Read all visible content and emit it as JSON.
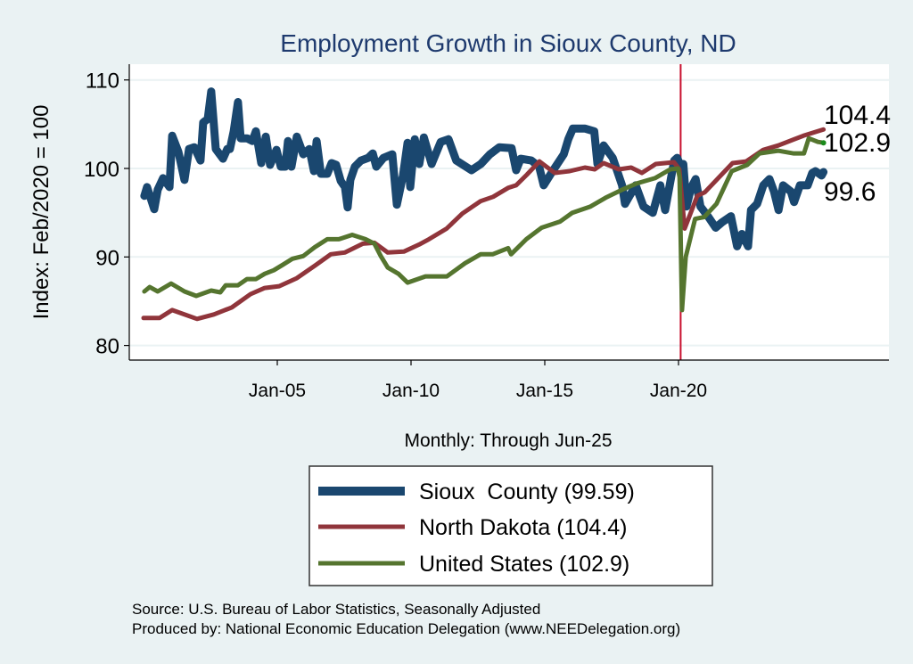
{
  "chart_data": {
    "type": "line",
    "title": "Employment Growth in Sioux  County, ND",
    "ylabel": "Index: Feb/2020 = 100",
    "xlabel": "Monthly: Through Jun-25",
    "ylim": [
      79,
      112
    ],
    "xlim": [
      1999.5,
      2028
    ],
    "yticks": [
      80,
      90,
      100,
      110
    ],
    "xticks": [
      {
        "value": 2005,
        "label": "Jan-05"
      },
      {
        "value": 2010,
        "label": "Jan-10"
      },
      {
        "value": 2015,
        "label": "Jan-15"
      },
      {
        "value": 2020,
        "label": "Jan-20"
      }
    ],
    "reference_line": {
      "x": 2020.08,
      "color": "#c8102e"
    },
    "grid": true,
    "legend": {
      "placement": "bottom"
    },
    "end_labels": [
      "104.4",
      "102.9",
      "99.6"
    ],
    "series": [
      {
        "name": "Sioux  County (99.59)",
        "color": "#1a476f",
        "points": [
          [
            2000.03,
            96.9
          ],
          [
            2000.13,
            97.9
          ],
          [
            2000.4,
            95.4
          ],
          [
            2000.53,
            97.6
          ],
          [
            2000.73,
            98.9
          ],
          [
            2000.97,
            97.9
          ],
          [
            2001.07,
            103.7
          ],
          [
            2001.3,
            101.9
          ],
          [
            2001.53,
            98.7
          ],
          [
            2001.7,
            102.2
          ],
          [
            2001.9,
            102.4
          ],
          [
            2002.13,
            100.9
          ],
          [
            2002.23,
            105.2
          ],
          [
            2002.4,
            105.6
          ],
          [
            2002.53,
            108.7
          ],
          [
            2002.7,
            102.2
          ],
          [
            2002.97,
            101.1
          ],
          [
            2003.13,
            102.2
          ],
          [
            2003.23,
            102.2
          ],
          [
            2003.37,
            104.2
          ],
          [
            2003.53,
            107.5
          ],
          [
            2003.63,
            103.4
          ],
          [
            2003.87,
            103.4
          ],
          [
            2004.07,
            103.1
          ],
          [
            2004.2,
            104.2
          ],
          [
            2004.4,
            100.6
          ],
          [
            2004.57,
            103.6
          ],
          [
            2004.73,
            100.4
          ],
          [
            2004.97,
            102.1
          ],
          [
            2005.13,
            100.2
          ],
          [
            2005.3,
            100.2
          ],
          [
            2005.4,
            103.1
          ],
          [
            2005.53,
            100.2
          ],
          [
            2005.73,
            103.6
          ],
          [
            2005.97,
            101.6
          ],
          [
            2006.2,
            102.2
          ],
          [
            2006.37,
            99.7
          ],
          [
            2006.47,
            103.1
          ],
          [
            2006.63,
            99.4
          ],
          [
            2006.87,
            99.4
          ],
          [
            2007.03,
            100.6
          ],
          [
            2007.2,
            100.4
          ],
          [
            2007.37,
            98.6
          ],
          [
            2007.53,
            97.9
          ],
          [
            2007.63,
            95.6
          ],
          [
            2007.73,
            98.7
          ],
          [
            2007.9,
            100.2
          ],
          [
            2008.13,
            100.9
          ],
          [
            2008.4,
            101.2
          ],
          [
            2008.57,
            101.7
          ],
          [
            2008.7,
            100.2
          ],
          [
            2008.97,
            101.2
          ],
          [
            2009.13,
            101.4
          ],
          [
            2009.3,
            101.6
          ],
          [
            2009.47,
            95.9
          ],
          [
            2009.7,
            99.2
          ],
          [
            2009.87,
            102.9
          ],
          [
            2009.97,
            97.9
          ],
          [
            2010.14,
            103.3
          ],
          [
            2010.31,
            100.5
          ],
          [
            2010.48,
            103.5
          ],
          [
            2010.77,
            100.5
          ],
          [
            2011.11,
            103.0
          ],
          [
            2011.4,
            103.3
          ],
          [
            2011.69,
            100.9
          ],
          [
            2012.26,
            99.8
          ],
          [
            2012.61,
            100.5
          ],
          [
            2012.95,
            101.6
          ],
          [
            2013.3,
            102.4
          ],
          [
            2013.76,
            102.3
          ],
          [
            2013.93,
            99.8
          ],
          [
            2014.1,
            101.1
          ],
          [
            2014.5,
            100.9
          ],
          [
            2014.79,
            100.2
          ],
          [
            2014.96,
            98.1
          ],
          [
            2015.25,
            99.5
          ],
          [
            2015.71,
            101.6
          ],
          [
            2015.88,
            103.3
          ],
          [
            2016.05,
            104.5
          ],
          [
            2016.51,
            104.5
          ],
          [
            2016.85,
            104.2
          ],
          [
            2016.97,
            100.5
          ],
          [
            2017.2,
            102.6
          ],
          [
            2017.54,
            101.2
          ],
          [
            2017.89,
            98.1
          ],
          [
            2018.0,
            96.0
          ],
          [
            2018.4,
            98.1
          ],
          [
            2018.69,
            95.7
          ],
          [
            2019.04,
            95.0
          ],
          [
            2019.32,
            98.1
          ],
          [
            2019.5,
            95.3
          ],
          [
            2019.67,
            98.1
          ],
          [
            2019.84,
            100.9
          ],
          [
            2019.95,
            101.2
          ],
          [
            2020.05,
            100.5
          ],
          [
            2020.18,
            100.5
          ],
          [
            2020.3,
            95.7
          ],
          [
            2020.47,
            97.8
          ],
          [
            2020.64,
            98.8
          ],
          [
            2020.82,
            95.7
          ],
          [
            2021.1,
            94.6
          ],
          [
            2021.39,
            93.3
          ],
          [
            2021.62,
            93.9
          ],
          [
            2021.96,
            94.6
          ],
          [
            2022.19,
            91.2
          ],
          [
            2022.37,
            92.6
          ],
          [
            2022.6,
            91.2
          ],
          [
            2022.71,
            95.3
          ],
          [
            2022.94,
            96.0
          ],
          [
            2023.17,
            98.1
          ],
          [
            2023.4,
            98.8
          ],
          [
            2023.57,
            97.4
          ],
          [
            2023.74,
            95.3
          ],
          [
            2023.91,
            98.1
          ],
          [
            2024.2,
            97.4
          ],
          [
            2024.32,
            96.2
          ],
          [
            2024.54,
            98.1
          ],
          [
            2024.83,
            98.1
          ],
          [
            2025.0,
            99.5
          ],
          [
            2025.12,
            99.7
          ],
          [
            2025.35,
            99.2
          ],
          [
            2025.42,
            99.6
          ]
        ]
      },
      {
        "name": "North Dakota (104.4)",
        "color": "#90353b",
        "points": [
          [
            2000.0,
            83.1
          ],
          [
            2000.6,
            83.1
          ],
          [
            2001.07,
            84.0
          ],
          [
            2002.0,
            83.0
          ],
          [
            2002.63,
            83.5
          ],
          [
            2003.3,
            84.3
          ],
          [
            2004.0,
            85.8
          ],
          [
            2004.53,
            86.5
          ],
          [
            2005.07,
            86.7
          ],
          [
            2005.73,
            87.6
          ],
          [
            2006.4,
            89.0
          ],
          [
            2007.0,
            90.3
          ],
          [
            2007.53,
            90.5
          ],
          [
            2008.2,
            91.5
          ],
          [
            2008.63,
            91.6
          ],
          [
            2009.13,
            90.5
          ],
          [
            2009.73,
            90.6
          ],
          [
            2010.3,
            91.4
          ],
          [
            2010.67,
            92.0
          ],
          [
            2011.33,
            93.2
          ],
          [
            2011.92,
            94.9
          ],
          [
            2012.6,
            96.3
          ],
          [
            2013.07,
            96.8
          ],
          [
            2013.63,
            97.8
          ],
          [
            2013.93,
            98.1
          ],
          [
            2014.33,
            99.3
          ],
          [
            2014.8,
            100.8
          ],
          [
            2015.37,
            99.5
          ],
          [
            2015.93,
            99.7
          ],
          [
            2016.5,
            100.1
          ],
          [
            2016.87,
            99.9
          ],
          [
            2017.2,
            100.6
          ],
          [
            2017.77,
            99.9
          ],
          [
            2018.23,
            100.1
          ],
          [
            2018.63,
            99.5
          ],
          [
            2019.15,
            100.5
          ],
          [
            2019.83,
            100.7
          ],
          [
            2020.03,
            99.9
          ],
          [
            2020.23,
            93.2
          ],
          [
            2020.7,
            96.9
          ],
          [
            2020.98,
            97.3
          ],
          [
            2022.02,
            100.6
          ],
          [
            2022.53,
            100.8
          ],
          [
            2023.17,
            102.1
          ],
          [
            2023.73,
            102.6
          ],
          [
            2024.67,
            103.7
          ],
          [
            2025.42,
            104.4
          ]
        ]
      },
      {
        "name": "United States (102.9)",
        "color": "#55752f",
        "points": [
          [
            2000.03,
            86.1
          ],
          [
            2000.23,
            86.6
          ],
          [
            2000.53,
            86.1
          ],
          [
            2001.03,
            87.0
          ],
          [
            2001.53,
            86.1
          ],
          [
            2001.97,
            85.6
          ],
          [
            2002.53,
            86.2
          ],
          [
            2002.87,
            86.0
          ],
          [
            2003.07,
            86.8
          ],
          [
            2003.53,
            86.8
          ],
          [
            2003.87,
            87.5
          ],
          [
            2004.2,
            87.5
          ],
          [
            2004.53,
            88.1
          ],
          [
            2004.87,
            88.5
          ],
          [
            2005.2,
            89.1
          ],
          [
            2005.57,
            89.8
          ],
          [
            2005.97,
            90.1
          ],
          [
            2006.4,
            91.1
          ],
          [
            2006.87,
            92.0
          ],
          [
            2007.3,
            92.0
          ],
          [
            2007.8,
            92.5
          ],
          [
            2008.3,
            92.0
          ],
          [
            2008.63,
            91.5
          ],
          [
            2008.87,
            90.1
          ],
          [
            2009.13,
            88.8
          ],
          [
            2009.53,
            88.1
          ],
          [
            2009.87,
            87.1
          ],
          [
            2010.54,
            87.8
          ],
          [
            2011.34,
            87.8
          ],
          [
            2012.02,
            89.3
          ],
          [
            2012.6,
            90.3
          ],
          [
            2013.05,
            90.3
          ],
          [
            2013.63,
            91.0
          ],
          [
            2013.74,
            90.3
          ],
          [
            2014.31,
            92.0
          ],
          [
            2014.88,
            93.3
          ],
          [
            2015.57,
            94.0
          ],
          [
            2016.03,
            95.0
          ],
          [
            2016.71,
            95.7
          ],
          [
            2017.28,
            96.7
          ],
          [
            2017.97,
            97.7
          ],
          [
            2018.43,
            98.3
          ],
          [
            2019.12,
            98.9
          ],
          [
            2019.69,
            99.9
          ],
          [
            2019.98,
            100.0
          ],
          [
            2020.04,
            99.0
          ],
          [
            2020.13,
            84.0
          ],
          [
            2020.27,
            90.0
          ],
          [
            2020.62,
            94.3
          ],
          [
            2020.96,
            94.5
          ],
          [
            2021.42,
            96.0
          ],
          [
            2021.99,
            99.7
          ],
          [
            2022.57,
            100.4
          ],
          [
            2023.03,
            101.7
          ],
          [
            2023.72,
            102.0
          ],
          [
            2024.29,
            101.7
          ],
          [
            2024.69,
            101.7
          ],
          [
            2024.87,
            103.4
          ],
          [
            2025.21,
            103.0
          ],
          [
            2025.42,
            102.9
          ]
        ]
      }
    ]
  },
  "footer": {
    "source": "Source: U.S. Bureau of Labor Statistics, Seasonally Adjusted",
    "produced_by": "Produced by: National Economic Education Delegation (www.NEEDelegation.org)"
  }
}
